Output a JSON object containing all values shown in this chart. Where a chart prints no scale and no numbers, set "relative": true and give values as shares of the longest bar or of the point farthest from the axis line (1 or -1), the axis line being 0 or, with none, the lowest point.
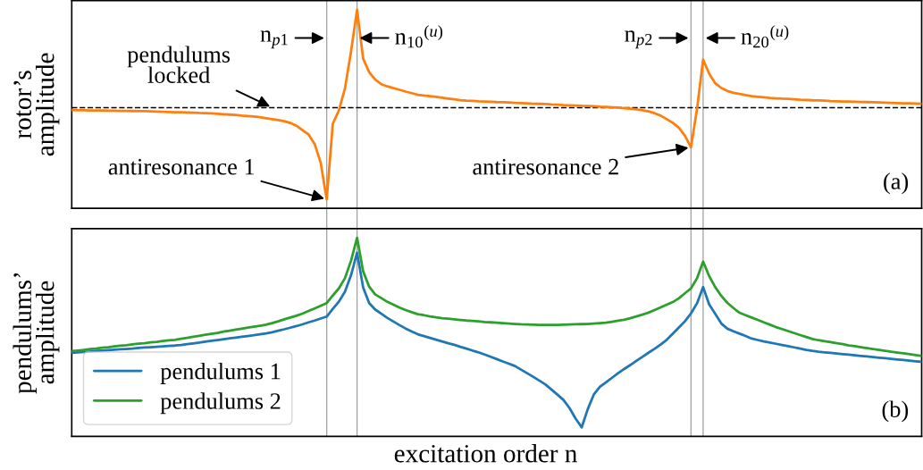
{
  "chart_data": [
    {
      "type": "line",
      "ylabel": "rotor’s\namplitude",
      "relative": true,
      "categories": [
        null,
        null,
        null,
        null,
        null,
        null,
        null,
        null,
        null,
        null,
        null,
        null,
        null,
        null,
        null,
        null,
        null,
        null,
        null,
        null,
        null,
        null,
        null,
        null,
        null,
        null,
        null,
        null,
        null,
        null,
        null,
        null,
        null,
        null,
        null,
        null,
        null,
        null,
        null,
        null,
        null,
        null,
        null,
        null,
        null,
        null,
        null,
        null,
        null,
        null,
        null,
        null,
        null,
        null,
        null,
        null,
        null,
        null,
        null,
        null,
        null,
        null,
        null,
        null,
        null,
        null,
        null,
        null,
        null,
        null,
        null,
        null,
        null,
        null,
        null,
        null,
        null,
        null,
        null,
        null,
        null,
        null,
        null,
        null,
        null,
        null,
        null,
        null,
        null,
        null,
        null,
        null,
        null,
        null,
        null,
        null,
        null,
        null,
        null,
        null,
        null,
        null,
        null,
        null,
        null,
        null,
        null,
        null,
        null,
        null,
        null,
        null,
        null,
        null,
        null,
        null,
        null,
        null,
        null,
        null,
        null,
        null,
        null,
        null,
        null,
        null,
        null,
        null,
        null,
        null,
        null,
        null,
        null,
        null,
        null,
        null,
        null,
        null,
        null,
        null,
        null
      ],
      "series": [
        {
          "color": "#ff7f0e",
          "values": [
            0.495,
            0.494,
            0.494,
            0.493,
            0.493,
            0.493,
            0.492,
            0.492,
            0.491,
            0.491,
            0.49,
            0.489,
            0.489,
            0.488,
            0.487,
            0.486,
            0.485,
            0.484,
            0.484,
            0.483,
            0.482,
            0.48,
            0.479,
            0.478,
            0.476,
            0.474,
            0.472,
            0.47,
            0.467,
            0.465,
            0.462,
            0.459,
            0.454,
            0.449,
            0.444,
            0.439,
            0.43,
            0.416,
            0.394,
            0.372,
            0.325,
            0.231,
            0.045,
            0.426,
            0.493,
            0.603,
            0.789,
            1.0,
            0.754,
            0.685,
            0.648,
            0.625,
            0.614,
            0.605,
            0.597,
            0.588,
            0.58,
            0.572,
            0.568,
            0.565,
            0.561,
            0.557,
            0.553,
            0.549,
            0.545,
            0.542,
            0.541,
            0.539,
            0.538,
            0.537,
            0.535,
            0.534,
            0.533,
            0.531,
            0.53,
            0.529,
            0.527,
            0.526,
            0.525,
            0.523,
            0.522,
            0.52,
            0.519,
            0.518,
            0.516,
            0.515,
            0.514,
            0.512,
            0.511,
            0.509,
            0.507,
            0.504,
            0.502,
            0.498,
            0.494,
            0.488,
            0.479,
            0.467,
            0.449,
            0.431,
            0.406,
            0.366,
            0.307,
            0.501,
            0.749,
            0.678,
            0.63,
            0.606,
            0.591,
            0.582,
            0.576,
            0.57,
            0.565,
            0.562,
            0.559,
            0.556,
            0.554,
            0.552,
            0.551,
            0.549,
            0.547,
            0.546,
            0.544,
            0.543,
            0.542,
            0.54,
            0.539,
            0.538,
            0.538,
            0.537,
            0.536,
            0.535,
            0.534,
            0.533,
            0.532,
            0.531,
            0.53,
            0.529,
            0.529,
            0.528,
            0.527
          ]
        }
      ],
      "ref_lines": [
        {
          "axis": "y",
          "value": 0.507,
          "label": "pendulums\nlocked",
          "color": "#000000",
          "line_style": "dashed"
        }
      ],
      "annotations": [
        "n$_{p1}$",
        "n$_{10}$$^{(u)}$",
        "n$_{p2}$",
        "n$_{20}$$^{(u)}$",
        "antiresonance 1",
        "antiresonance 2",
        "(a)"
      ]
    },
    {
      "type": "line",
      "ylabel": "pendulums’\namplitude",
      "xlabel": "excitation order n",
      "relative": true,
      "legend": "bottom left",
      "categories": [
        null,
        null,
        null,
        null,
        null,
        null,
        null,
        null,
        null,
        null,
        null,
        null,
        null,
        null,
        null,
        null,
        null,
        null,
        null,
        null,
        null,
        null,
        null,
        null,
        null,
        null,
        null,
        null,
        null,
        null,
        null,
        null,
        null,
        null,
        null,
        null,
        null,
        null,
        null,
        null,
        null,
        null,
        null,
        null,
        null,
        null,
        null,
        null,
        null,
        null,
        null,
        null,
        null,
        null,
        null,
        null,
        null,
        null,
        null,
        null,
        null,
        null,
        null,
        null,
        null,
        null,
        null,
        null,
        null,
        null,
        null,
        null,
        null,
        null,
        null,
        null,
        null,
        null,
        null,
        null,
        null,
        null,
        null,
        null,
        null,
        null,
        null,
        null,
        null,
        null,
        null,
        null,
        null,
        null,
        null,
        null,
        null,
        null,
        null,
        null,
        null,
        null,
        null,
        null,
        null,
        null,
        null,
        null,
        null,
        null,
        null,
        null,
        null,
        null,
        null,
        null,
        null,
        null,
        null,
        null,
        null,
        null,
        null,
        null,
        null,
        null,
        null,
        null,
        null,
        null,
        null,
        null,
        null,
        null,
        null,
        null,
        null,
        null,
        null,
        null,
        null
      ],
      "series": [
        {
          "name": "pendulums 1",
          "color": "#1f77b4",
          "values": [
            0.421,
            0.423,
            0.425,
            0.427,
            0.43,
            0.432,
            0.434,
            0.436,
            0.438,
            0.44,
            0.442,
            0.445,
            0.447,
            0.449,
            0.451,
            0.453,
            0.455,
            0.457,
            0.46,
            0.464,
            0.468,
            0.472,
            0.477,
            0.481,
            0.485,
            0.489,
            0.493,
            0.497,
            0.501,
            0.505,
            0.509,
            0.514,
            0.518,
            0.524,
            0.532,
            0.539,
            0.547,
            0.555,
            0.564,
            0.574,
            0.583,
            0.593,
            0.603,
            0.642,
            0.678,
            0.728,
            0.811,
            0.925,
            0.75,
            0.671,
            0.638,
            0.617,
            0.596,
            0.578,
            0.56,
            0.543,
            0.528,
            0.514,
            0.505,
            0.496,
            0.487,
            0.478,
            0.469,
            0.461,
            0.451,
            0.442,
            0.432,
            0.423,
            0.412,
            0.401,
            0.389,
            0.377,
            0.366,
            0.354,
            0.336,
            0.318,
            0.3,
            0.281,
            0.262,
            0.236,
            0.21,
            0.183,
            0.142,
            0.089,
            0.045,
            0.137,
            0.211,
            0.249,
            0.272,
            0.295,
            0.318,
            0.339,
            0.359,
            0.38,
            0.4,
            0.421,
            0.441,
            0.462,
            0.486,
            0.517,
            0.548,
            0.579,
            0.619,
            0.67,
            0.752,
            0.664,
            0.617,
            0.568,
            0.542,
            0.529,
            0.517,
            0.505,
            0.492,
            0.485,
            0.478,
            0.472,
            0.466,
            0.46,
            0.454,
            0.448,
            0.442,
            0.435,
            0.43,
            0.426,
            0.423,
            0.42,
            0.417,
            0.414,
            0.411,
            0.408,
            0.405,
            0.402,
            0.399,
            0.396,
            0.393,
            0.39,
            0.387,
            0.384,
            0.381,
            0.378,
            0.375
          ]
        },
        {
          "name": "pendulums 2",
          "color": "#2ca02c",
          "values": [
            0.429,
            0.432,
            0.435,
            0.439,
            0.442,
            0.446,
            0.449,
            0.453,
            0.456,
            0.459,
            0.463,
            0.466,
            0.469,
            0.473,
            0.476,
            0.48,
            0.483,
            0.486,
            0.491,
            0.496,
            0.501,
            0.506,
            0.511,
            0.516,
            0.521,
            0.527,
            0.532,
            0.537,
            0.542,
            0.547,
            0.552,
            0.557,
            0.562,
            0.57,
            0.579,
            0.589,
            0.598,
            0.607,
            0.618,
            0.631,
            0.644,
            0.657,
            0.671,
            0.709,
            0.745,
            0.796,
            0.884,
            1.0,
            0.831,
            0.753,
            0.714,
            0.696,
            0.677,
            0.663,
            0.648,
            0.636,
            0.625,
            0.615,
            0.61,
            0.604,
            0.599,
            0.595,
            0.592,
            0.589,
            0.586,
            0.583,
            0.581,
            0.579,
            0.576,
            0.574,
            0.572,
            0.57,
            0.568,
            0.566,
            0.564,
            0.563,
            0.562,
            0.561,
            0.561,
            0.561,
            0.561,
            0.562,
            0.563,
            0.564,
            0.565,
            0.566,
            0.568,
            0.57,
            0.572,
            0.577,
            0.582,
            0.587,
            0.595,
            0.604,
            0.613,
            0.623,
            0.636,
            0.649,
            0.663,
            0.676,
            0.695,
            0.72,
            0.745,
            0.796,
            0.88,
            0.807,
            0.751,
            0.707,
            0.672,
            0.646,
            0.622,
            0.61,
            0.598,
            0.586,
            0.574,
            0.562,
            0.55,
            0.54,
            0.53,
            0.52,
            0.51,
            0.5,
            0.49,
            0.484,
            0.479,
            0.474,
            0.469,
            0.464,
            0.458,
            0.454,
            0.449,
            0.444,
            0.439,
            0.435,
            0.431,
            0.426,
            0.422,
            0.418,
            0.414,
            0.409,
            0.405
          ]
        }
      ],
      "annotations": [
        "(b)"
      ]
    }
  ]
}
